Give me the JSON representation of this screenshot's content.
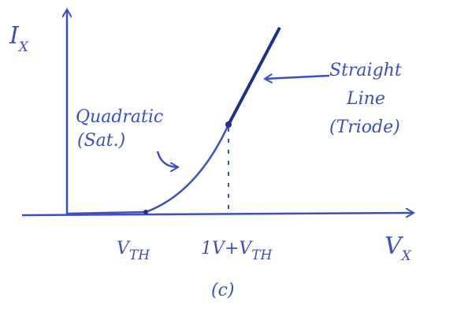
{
  "y_label": {
    "main": "I",
    "sub": "X"
  },
  "x_label": {
    "main": "V",
    "sub": "X"
  },
  "x_marks": [
    {
      "main": "V",
      "sub": "TH"
    },
    {
      "main": "1V+V",
      "sub": "TH"
    }
  ],
  "annotations": {
    "triode": [
      "Straight",
      "Line",
      "(Triode)"
    ],
    "saturation": [
      "Quadratic",
      "(Sat.)"
    ]
  },
  "caption": "(c)"
}
